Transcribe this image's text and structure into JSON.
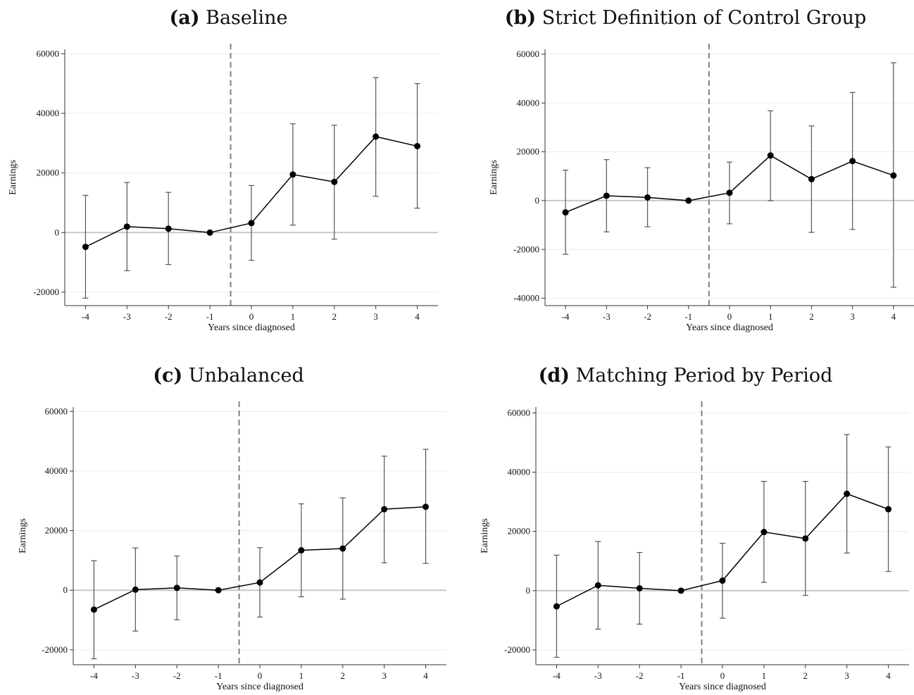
{
  "chart_data": [
    {
      "type": "line",
      "panel_tag": "(a)",
      "title": "Baseline",
      "xlabel": "Years since diagnosed",
      "ylabel": "Earnings",
      "x": [
        -4,
        -3,
        -2,
        -1,
        0,
        1,
        2,
        3,
        4
      ],
      "xticks": [
        "-4",
        "-3",
        "-2",
        "-1",
        "0",
        "1",
        "2",
        "3",
        "4"
      ],
      "yticks": [
        -20000,
        0,
        20000,
        40000,
        60000
      ],
      "ylim": [
        -24500,
        61500
      ],
      "values": [
        -4800,
        2000,
        1300,
        0,
        3200,
        19500,
        17000,
        32200,
        29000
      ],
      "ci_low": [
        -22000,
        -12800,
        -10700,
        0,
        -9300,
        2500,
        -2200,
        12200,
        8200
      ],
      "ci_high": [
        12500,
        16800,
        13500,
        0,
        15800,
        36500,
        36000,
        52000,
        50000
      ],
      "event_line_x": -0.5,
      "grid": true
    },
    {
      "type": "line",
      "panel_tag": "(b)",
      "title": "Strict Definition of Control Group",
      "xlabel": "Years since diagnosed",
      "ylabel": "Earnings",
      "x": [
        -4,
        -3,
        -2,
        -1,
        0,
        1,
        2,
        3,
        4
      ],
      "xticks": [
        "-4",
        "-3",
        "-2",
        "-1",
        "0",
        "1",
        "2",
        "3",
        "4"
      ],
      "yticks": [
        -40000,
        -20000,
        0,
        20000,
        40000,
        60000
      ],
      "ylim": [
        -43000,
        62000
      ],
      "values": [
        -4800,
        2000,
        1300,
        0,
        3200,
        18500,
        8800,
        16200,
        10300
      ],
      "ci_low": [
        -22000,
        -12800,
        -10700,
        0,
        -9500,
        0,
        -13000,
        -11800,
        -35500
      ],
      "ci_high": [
        12500,
        16800,
        13500,
        0,
        15800,
        36800,
        30600,
        44300,
        56500
      ],
      "event_line_x": -0.5,
      "grid": true
    },
    {
      "type": "line",
      "panel_tag": "(c)",
      "title": "Unbalanced",
      "xlabel": "Years since diagnosed",
      "ylabel": "Earnings",
      "x": [
        -4,
        -3,
        -2,
        -1,
        0,
        1,
        2,
        3,
        4
      ],
      "xticks": [
        "-4",
        "-3",
        "-2",
        "-1",
        "0",
        "1",
        "2",
        "3",
        "4"
      ],
      "yticks": [
        -20000,
        0,
        20000,
        40000,
        60000
      ],
      "ylim": [
        -25000,
        61500
      ],
      "values": [
        -6500,
        200,
        800,
        0,
        2600,
        13400,
        14000,
        27200,
        28000
      ],
      "ci_low": [
        -23000,
        -13700,
        -9900,
        0,
        -9000,
        -2200,
        -3000,
        9200,
        9000
      ],
      "ci_high": [
        9900,
        14200,
        11500,
        0,
        14300,
        29000,
        31000,
        45000,
        47300
      ],
      "event_line_x": -0.5,
      "grid": true
    },
    {
      "type": "line",
      "panel_tag": "(d)",
      "title": "Matching Period by Period",
      "xlabel": "Years since diagnosed",
      "ylabel": "Earnings",
      "x": [
        -4,
        -3,
        -2,
        -1,
        0,
        1,
        2,
        3,
        4
      ],
      "xticks": [
        "-4",
        "-3",
        "-2",
        "-1",
        "0",
        "1",
        "2",
        "3",
        "4"
      ],
      "yticks": [
        -20000,
        0,
        20000,
        40000,
        60000
      ],
      "ylim": [
        -25000,
        62000
      ],
      "values": [
        -5300,
        1800,
        800,
        0,
        3400,
        19800,
        17600,
        32700,
        27500
      ],
      "ci_low": [
        -22500,
        -13000,
        -11300,
        0,
        -9300,
        2800,
        -1600,
        12700,
        6500
      ],
      "ci_high": [
        12000,
        16600,
        12900,
        0,
        16000,
        36900,
        36900,
        52700,
        48500
      ],
      "event_line_x": -0.5,
      "grid": true
    }
  ]
}
